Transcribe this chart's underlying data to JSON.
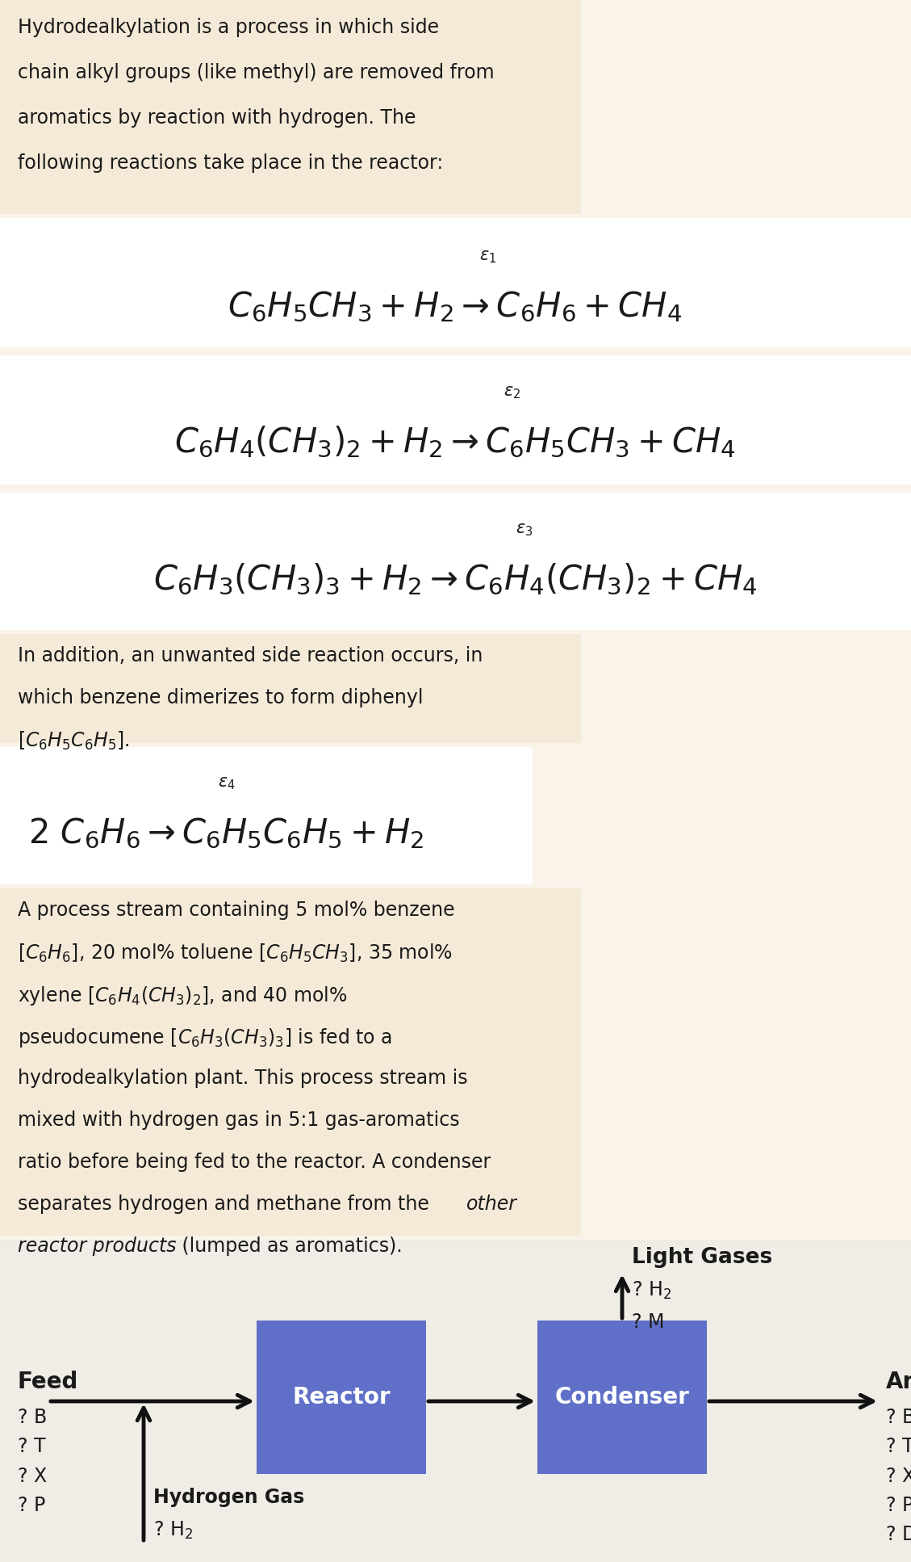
{
  "bg_color": "#faf3ea",
  "panel_color": "#f5ead8",
  "white_color": "#ffffff",
  "box_color": "#6070c8",
  "text_color": "#1a1a1a",
  "arrow_color": "#111111",
  "fig_w": 11.29,
  "fig_h": 19.34,
  "dpi": 100,
  "intro_lines": [
    "Hydrodealkylation is a process in which side",
    "chain alkyl groups (like methyl) are removed from",
    "aromatics by reaction with hydrogen. The",
    "following reactions take place in the reactor:"
  ],
  "side_lines": [
    "In addition, an unwanted side reaction occurs, in",
    "which benzene dimerizes to form diphenyl",
    "[$C_6H_5C_6H_5$]."
  ],
  "process_lines_normal": [
    "A process stream containing 5 mol% benzene",
    "[$C_6H_6$], 20 mol% toluene [$C_6H_5CH_3$], 35 mol%",
    "xylene [$C_6H_4(CH_3)_2$], and 40 mol%",
    "pseudocumene [$C_6H_3(CH_3)_3$] is fed to a",
    "hydrodealkylation plant. This process stream is",
    "mixed with hydrogen gas in 5:1 gas-aromatics",
    "ratio before being fed to the reactor. A condenser",
    "separates hydrogen and methane from the"
  ],
  "process_italic_1": "other",
  "process_italic_2": "reactor products",
  "process_end": " (lumped as aromatics).",
  "rxn1": "$C_6H_5CH_3 + H_2 \\rightarrow C_6H_6 + CH_4$",
  "rxn2": "$C_6H_4(CH_3)_2 + H_2 \\rightarrow C_6H_5CH_3 + CH_4$",
  "rxn3": "$C_6H_3(CH_3)_3 + H_2 \\rightarrow C_6H_4(CH_3)_2 + CH_4$",
  "rxn4": "$2\\ C_6H_6 \\rightarrow C_6H_5C_6H_5 + H_2$",
  "eps1": "$\\varepsilon_1$",
  "eps2": "$\\varepsilon_2$",
  "eps3": "$\\varepsilon_3$",
  "eps4": "$\\varepsilon_4$"
}
